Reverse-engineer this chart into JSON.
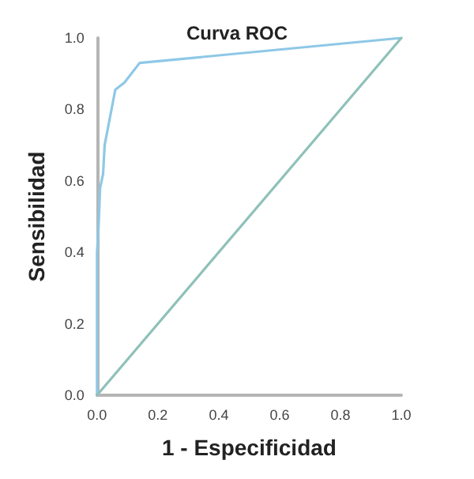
{
  "chart_data": {
    "type": "line",
    "title": "Curva ROC",
    "xlabel": "1 - Especificidad",
    "ylabel": "Sensibilidad",
    "xlim": [
      0,
      1
    ],
    "ylim": [
      0,
      1
    ],
    "xticks": [
      {
        "value": 0,
        "label": "0.0"
      },
      {
        "value": 0.2,
        "label": "0.2"
      },
      {
        "value": 0.4,
        "label": "0.4"
      },
      {
        "value": 0.6,
        "label": "0.6"
      },
      {
        "value": 0.8,
        "label": "0.8"
      },
      {
        "value": 1,
        "label": "1.0"
      }
    ],
    "yticks": [
      {
        "value": 0,
        "label": "0.0"
      },
      {
        "value": 0.2,
        "label": "0.2"
      },
      {
        "value": 0.4,
        "label": "0.4"
      },
      {
        "value": 0.6,
        "label": "0.6"
      },
      {
        "value": 0.8,
        "label": "0.8"
      },
      {
        "value": 1,
        "label": "1.0"
      }
    ],
    "grid": false,
    "marker": "none",
    "line_style": "solid",
    "series": [
      {
        "color": "#8ec8e6",
        "x": [
          0,
          0,
          0.005,
          0.01,
          0.02,
          0.025,
          0.06,
          0.09,
          0.14,
          1
        ],
        "values": [
          0,
          0.4,
          0.47,
          0.58,
          0.62,
          0.7,
          0.855,
          0.875,
          0.93,
          1
        ]
      },
      {
        "color": "#8fc1b9",
        "x": [
          0,
          1
        ],
        "values": [
          0,
          1
        ]
      }
    ]
  }
}
